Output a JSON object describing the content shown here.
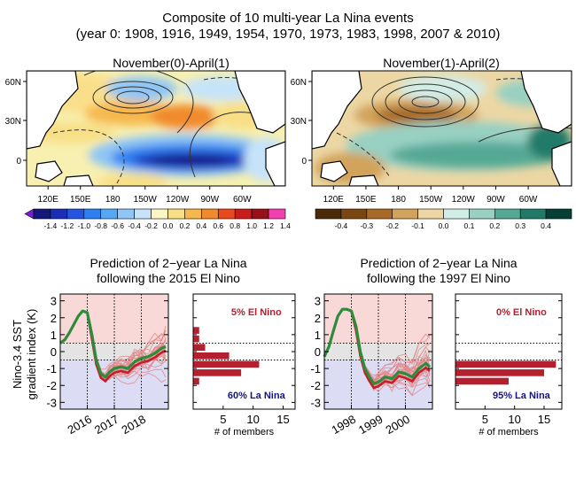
{
  "title": "Composite of 10 multi-year La Nina events",
  "subtitle": "(year 0: 1908, 1916, 1949, 1954, 1970, 1973, 1983, 1998, 2007 & 2010)",
  "maps": [
    {
      "title": "November(0)-April(1)",
      "lat_labels": [
        "60N",
        "30N",
        "0"
      ],
      "lon_labels": [
        "120E",
        "150E",
        "180",
        "150W",
        "120W",
        "90W",
        "60W"
      ],
      "colorbar_labels": [
        "-1.4",
        "-1.2",
        "-1.0",
        "-0.8",
        "-0.6",
        "-0.4",
        "-0.2",
        "0.0",
        "0.2",
        "0.4",
        "0.6",
        "0.8",
        "1.0",
        "1.2",
        "1.4"
      ],
      "colorbar_colors": [
        "#7a1fd6",
        "#15187a",
        "#1c2db5",
        "#2455e0",
        "#2e80f0",
        "#57a8f3",
        "#8fc6f6",
        "#c6e3f9",
        "#fbf6c4",
        "#f8df86",
        "#f6b84e",
        "#f08a2c",
        "#e8491d",
        "#c91d1d",
        "#9a1017",
        "#f23fb0"
      ]
    },
    {
      "title": "November(1)-April(2)",
      "lat_labels": [
        "60N",
        "30N",
        "0"
      ],
      "lon_labels": [
        "120E",
        "150E",
        "180",
        "150W",
        "120W",
        "90W",
        "60W"
      ],
      "colorbar_labels": [
        "-0.4",
        "-0.3",
        "-0.2",
        "-0.1",
        "0.0",
        "0.1",
        "0.2",
        "0.3",
        "0.4"
      ],
      "colorbar_colors": [
        "#4a2a08",
        "#7a4712",
        "#a86a26",
        "#d2a35b",
        "#ecd7a4",
        "#d2ece6",
        "#98d0c2",
        "#55a994",
        "#217a67",
        "#063f33"
      ]
    }
  ],
  "chart_data": [
    {
      "type": "line",
      "title": "Prediction of 2−year La Nina\nfollowing the 2015 El Nino",
      "ylabel": "Nino-3.4 SST\ngradient index (K)",
      "x_ticks": [
        "2016",
        "2017",
        "2018"
      ],
      "ylim": [
        -3.4,
        3.4
      ],
      "y_ticks": [
        3,
        2,
        1,
        0,
        -1,
        -2,
        -3
      ],
      "thresholds": [
        0.5,
        -0.5
      ],
      "shading": {
        "upper": "#f9d8d8",
        "middle": "#e4e4e4",
        "lower": "#dcdcf5"
      },
      "series": [
        {
          "color": "#2e8b3a",
          "x": [
            2015.0,
            2015.17,
            2015.33,
            2015.5,
            2015.67,
            2015.83,
            2016.0,
            2016.17,
            2016.33,
            2016.5,
            2016.67,
            2016.83,
            2017.0,
            2017.25,
            2017.5,
            2017.75,
            2018.0,
            2018.25,
            2018.5,
            2018.75,
            2018.9
          ],
          "y": [
            0.5,
            0.7,
            1.1,
            1.6,
            2.1,
            2.4,
            2.3,
            1.0,
            -0.5,
            -1.3,
            -1.5,
            -1.2,
            -1.0,
            -0.9,
            -1.0,
            -0.6,
            -0.4,
            -0.3,
            -0.1,
            0.2,
            0.3
          ]
        }
      ]
    },
    {
      "type": "bar",
      "xlabel": "# of members",
      "x_ticks": [
        5,
        10,
        15
      ],
      "xlim": [
        0,
        17
      ],
      "ylim": [
        -3.4,
        3.4
      ],
      "y_ticks": [
        3,
        2,
        1,
        0,
        -1,
        -2,
        -3
      ],
      "bin_centers": [
        1.25,
        0.75,
        0.25,
        -0.25,
        -0.75,
        -1.25,
        -1.75
      ],
      "counts": [
        1,
        1,
        2,
        6,
        11,
        8,
        1
      ],
      "annotations": {
        "el_nino": "5% El Nino",
        "la_nina": "60% La Nina"
      }
    },
    {
      "type": "line",
      "title": "Prediction of 2−year La Nina\nfollowing the 1997 El Nino",
      "x_ticks": [
        "1998",
        "1999",
        "2000"
      ],
      "ylim": [
        -3.4,
        3.4
      ],
      "y_ticks": [
        3,
        2,
        1,
        0,
        -1,
        -2,
        -3
      ],
      "thresholds": [
        0.5,
        -0.5
      ],
      "shading": {
        "upper": "#f9d8d8",
        "middle": "#e4e4e4",
        "lower": "#dcdcf5"
      },
      "series": [
        {
          "color": "#2e8b3a",
          "x": [
            1997.0,
            1997.17,
            1997.33,
            1997.5,
            1997.67,
            1997.83,
            1998.0,
            1998.17,
            1998.33,
            1998.5,
            1998.67,
            1998.83,
            1999.0,
            1999.25,
            1999.5,
            1999.75,
            2000.0,
            2000.25,
            2000.5,
            2000.75,
            2000.9
          ],
          "y": [
            -0.3,
            0.3,
            1.2,
            2.1,
            2.5,
            2.5,
            2.4,
            1.5,
            0.0,
            -1.0,
            -1.5,
            -1.9,
            -1.8,
            -1.5,
            -1.6,
            -1.2,
            -1.3,
            -1.5,
            -1.0,
            -0.7,
            -0.9
          ]
        }
      ]
    },
    {
      "type": "bar",
      "xlabel": "# of members",
      "x_ticks": [
        5,
        10,
        15
      ],
      "xlim": [
        0,
        18
      ],
      "ylim": [
        -3.4,
        3.4
      ],
      "y_ticks": [
        3,
        2,
        1,
        0,
        -1,
        -2,
        -3
      ],
      "bin_centers": [
        -0.75,
        -1.25,
        -1.75
      ],
      "counts": [
        17,
        15,
        9
      ],
      "annotations": {
        "el_nino": "0% El Nino",
        "la_nina": "95% La Nina"
      }
    }
  ]
}
